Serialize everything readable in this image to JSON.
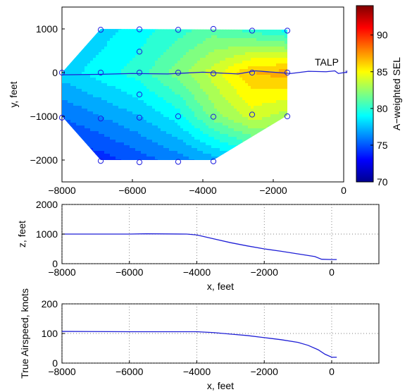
{
  "chart_data": [
    {
      "type": "heatmap",
      "xlabel": "",
      "ylabel": "y, feet",
      "xlim": [
        -8000,
        0
      ],
      "ylim": [
        -2500,
        1500
      ],
      "xticks": [
        "-8000",
        "-6000",
        "-4000",
        "-2000",
        "0"
      ],
      "yticks": [
        "-2000",
        "-1000",
        "0",
        "1000"
      ],
      "colorbar": {
        "label": "A−weighted SEL",
        "range": [
          70,
          94
        ],
        "ticks": [
          "70",
          "75",
          "80",
          "85",
          "90"
        ]
      },
      "annotation": "TALP",
      "region_polygon": [
        [
          -6900,
          1000
        ],
        [
          -1600,
          980
        ],
        [
          -1600,
          -980
        ],
        [
          -3700,
          -2000
        ],
        [
          -6900,
          -2000
        ],
        [
          -8000,
          -1000
        ],
        [
          -8000,
          0
        ]
      ],
      "microphones": [
        [
          -6900,
          980
        ],
        [
          -5800,
          990
        ],
        [
          -4700,
          980
        ],
        [
          -3700,
          1000
        ],
        [
          -2600,
          960
        ],
        [
          -1600,
          960
        ],
        [
          -5800,
          480
        ],
        [
          -8000,
          0
        ],
        [
          -6900,
          0
        ],
        [
          -5800,
          0
        ],
        [
          -4700,
          0
        ],
        [
          -3700,
          -20
        ],
        [
          -2600,
          0
        ],
        [
          -1600,
          0
        ],
        [
          -5800,
          -500
        ],
        [
          -8000,
          -1030
        ],
        [
          -6900,
          -1050
        ],
        [
          -5800,
          -1030
        ],
        [
          -4700,
          -1000
        ],
        [
          -3700,
          -1010
        ],
        [
          -2600,
          -960
        ],
        [
          -1600,
          -1000
        ],
        [
          -6900,
          -2020
        ],
        [
          -5800,
          -2050
        ],
        [
          -4700,
          -2040
        ],
        [
          -3700,
          -2030
        ]
      ],
      "track": [
        [
          -8000,
          -50
        ],
        [
          -7000,
          -40
        ],
        [
          -6000,
          -20
        ],
        [
          -5000,
          -30
        ],
        [
          -4000,
          10
        ],
        [
          -3000,
          -30
        ],
        [
          -2500,
          40
        ],
        [
          -2000,
          10
        ],
        [
          -1500,
          -20
        ],
        [
          -1000,
          30
        ],
        [
          -500,
          20
        ],
        [
          -250,
          40
        ],
        [
          -150,
          -20
        ],
        [
          0,
          0
        ],
        [
          100,
          5
        ]
      ],
      "sel_grid": {
        "x": [
          -8000,
          -6900,
          -5800,
          -4700,
          -3700,
          -2600,
          -1600
        ],
        "y": [
          -2000,
          -1000,
          0,
          1000
        ],
        "values": [
          [
            73.5,
            74.0,
            75.0,
            76.0,
            77.0,
            78.5,
            80.0
          ],
          [
            75.5,
            76.5,
            77.5,
            79.0,
            82.0,
            84.0,
            83.0
          ],
          [
            78.0,
            79.0,
            80.0,
            82.0,
            84.0,
            86.5,
            87.0
          ],
          [
            77.0,
            78.0,
            79.0,
            80.0,
            81.0,
            80.0,
            79.0
          ]
        ]
      }
    },
    {
      "type": "line",
      "xlabel": "x, feet",
      "ylabel": "z, feet",
      "xlim": [
        -8000,
        1400
      ],
      "ylim": [
        0,
        2000
      ],
      "xticks": [
        "-8000",
        "-6000",
        "-4000",
        "-2000",
        "0"
      ],
      "yticks": [
        "0",
        "1000",
        "2000"
      ],
      "grid": "dotted",
      "series": [
        {
          "x": [
            -8000,
            -6000,
            -5500,
            -4300,
            -4000,
            -3500,
            -3000,
            -2500,
            -2000,
            -1500,
            -1000,
            -500,
            -300,
            0,
            150
          ],
          "values": [
            1000,
            1000,
            1010,
            1000,
            970,
            840,
            710,
            600,
            500,
            420,
            330,
            240,
            150,
            140,
            140
          ]
        }
      ]
    },
    {
      "type": "line",
      "xlabel": "x, feet",
      "ylabel": "True Airspeed, knots",
      "xlim": [
        -8000,
        1400
      ],
      "ylim": [
        0,
        200
      ],
      "xticks": [
        "-8000",
        "-6000",
        "-4000",
        "-2000",
        "0"
      ],
      "yticks": [
        "0",
        "100",
        "200"
      ],
      "grid": "dotted",
      "series": [
        {
          "x": [
            -8000,
            -6000,
            -4000,
            -3500,
            -3000,
            -2500,
            -2000,
            -1500,
            -1000,
            -700,
            -400,
            -200,
            0,
            150
          ],
          "values": [
            107,
            106,
            106,
            103,
            98,
            93,
            86,
            79,
            70,
            60,
            45,
            30,
            20,
            20
          ]
        }
      ]
    }
  ]
}
